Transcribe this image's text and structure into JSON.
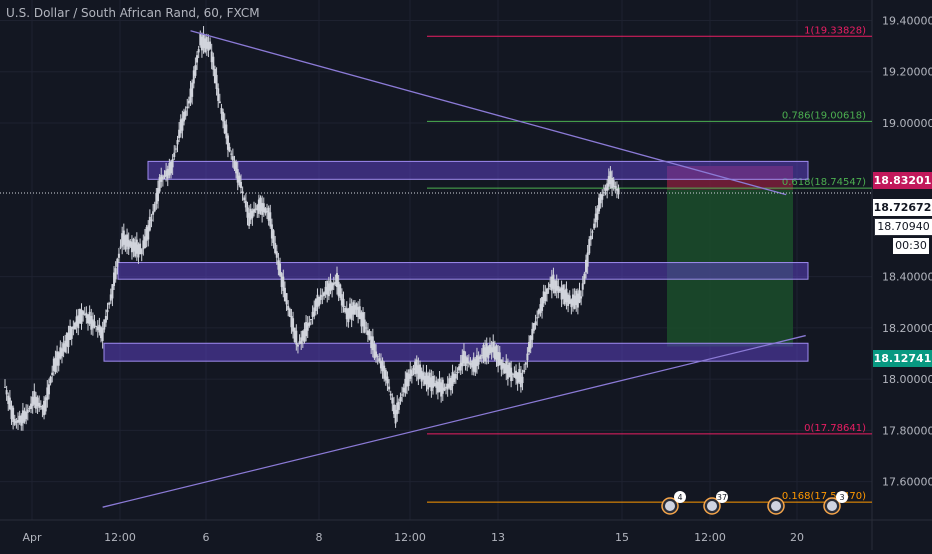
{
  "header": {
    "title": "U.S. Dollar / South African Rand, 60, FXCM"
  },
  "price_tags": {
    "upper": "18.83201",
    "last": "18.72672",
    "bid": "18.70940",
    "countdown": "00:30",
    "lower": "18.12741"
  },
  "colors": {
    "background": "#131722",
    "grid": "#1e2230",
    "candles": "#d1d4dc",
    "zone_fill": "#5b3fbf",
    "trendline": "#8b7ad6",
    "fib_red": "#e91e63",
    "fib_green": "#4caf50",
    "fib_orange": "#ff9800",
    "stop_zone": "#7b1f3a",
    "target_zone": "#1b4d2a"
  },
  "chart_data": {
    "type": "candlestick",
    "title": "U.S. Dollar / South African Rand, 60, FXCM",
    "ylim": [
      17.45,
      19.48
    ],
    "y_ticks": [
      {
        "value": 19.4,
        "label": "19.40000"
      },
      {
        "value": 19.2,
        "label": "19.20000"
      },
      {
        "value": 19.0,
        "label": "19.00000"
      },
      {
        "value": 18.4,
        "label": "18.40000"
      },
      {
        "value": 18.2,
        "label": "18.20000"
      },
      {
        "value": 18.0,
        "label": "18.00000"
      },
      {
        "value": 17.8,
        "label": "17.80000"
      },
      {
        "value": 17.6,
        "label": "17.60000"
      }
    ],
    "x_ticks": [
      "Apr",
      "12:00",
      "6",
      "8",
      "12:00",
      "13",
      "15",
      "12:00",
      "20"
    ],
    "price_series": [
      {
        "t": 0,
        "price": 17.97
      },
      {
        "t": 1,
        "price": 17.83
      },
      {
        "t": 2,
        "price": 17.85
      },
      {
        "t": 3,
        "price": 17.92
      },
      {
        "t": 4,
        "price": 17.88
      },
      {
        "t": 5,
        "price": 18.05
      },
      {
        "t": 6,
        "price": 18.12
      },
      {
        "t": 7,
        "price": 18.2
      },
      {
        "t": 8,
        "price": 18.26
      },
      {
        "t": 9,
        "price": 18.22
      },
      {
        "t": 10,
        "price": 18.18
      },
      {
        "t": 11,
        "price": 18.35
      },
      {
        "t": 12,
        "price": 18.55
      },
      {
        "t": 13,
        "price": 18.52
      },
      {
        "t": 14,
        "price": 18.5
      },
      {
        "t": 15,
        "price": 18.62
      },
      {
        "t": 16,
        "price": 18.78
      },
      {
        "t": 17,
        "price": 18.82
      },
      {
        "t": 18,
        "price": 18.98
      },
      {
        "t": 19,
        "price": 19.1
      },
      {
        "t": 20,
        "price": 19.32
      },
      {
        "t": 21,
        "price": 19.3
      },
      {
        "t": 22,
        "price": 19.08
      },
      {
        "t": 23,
        "price": 18.9
      },
      {
        "t": 24,
        "price": 18.78
      },
      {
        "t": 25,
        "price": 18.63
      },
      {
        "t": 26,
        "price": 18.68
      },
      {
        "t": 27,
        "price": 18.65
      },
      {
        "t": 28,
        "price": 18.45
      },
      {
        "t": 29,
        "price": 18.28
      },
      {
        "t": 30,
        "price": 18.13
      },
      {
        "t": 31,
        "price": 18.2
      },
      {
        "t": 32,
        "price": 18.3
      },
      {
        "t": 33,
        "price": 18.35
      },
      {
        "t": 34,
        "price": 18.38
      },
      {
        "t": 35,
        "price": 18.25
      },
      {
        "t": 36,
        "price": 18.28
      },
      {
        "t": 37,
        "price": 18.2
      },
      {
        "t": 38,
        "price": 18.1
      },
      {
        "t": 39,
        "price": 18.02
      },
      {
        "t": 40,
        "price": 17.86
      },
      {
        "t": 41,
        "price": 17.98
      },
      {
        "t": 42,
        "price": 18.05
      },
      {
        "t": 43,
        "price": 18.0
      },
      {
        "t": 44,
        "price": 17.98
      },
      {
        "t": 45,
        "price": 17.96
      },
      {
        "t": 46,
        "price": 18.0
      },
      {
        "t": 47,
        "price": 18.08
      },
      {
        "t": 48,
        "price": 18.05
      },
      {
        "t": 49,
        "price": 18.1
      },
      {
        "t": 50,
        "price": 18.12
      },
      {
        "t": 51,
        "price": 18.05
      },
      {
        "t": 52,
        "price": 18.02
      },
      {
        "t": 53,
        "price": 18.0
      },
      {
        "t": 54,
        "price": 18.18
      },
      {
        "t": 55,
        "price": 18.3
      },
      {
        "t": 56,
        "price": 18.38
      },
      {
        "t": 57,
        "price": 18.34
      },
      {
        "t": 58,
        "price": 18.3
      },
      {
        "t": 59,
        "price": 18.32
      },
      {
        "t": 60,
        "price": 18.55
      },
      {
        "t": 61,
        "price": 18.7
      },
      {
        "t": 62,
        "price": 18.78
      },
      {
        "t": 63,
        "price": 18.72
      }
    ],
    "zones": [
      {
        "top": 18.85,
        "bottom": 18.78
      },
      {
        "top": 18.455,
        "bottom": 18.39
      },
      {
        "top": 18.14,
        "bottom": 18.07
      }
    ],
    "fib_levels": [
      {
        "ratio": 1,
        "price": 19.33828,
        "label": "1(19.33828)",
        "color": "red"
      },
      {
        "ratio": 0.786,
        "price": 19.00618,
        "label": "0.786(19.00618)",
        "color": "green"
      },
      {
        "ratio": 0.618,
        "price": 18.74547,
        "label": "0.618(18.74547)",
        "color": "green"
      },
      {
        "ratio": 0,
        "price": 17.78641,
        "label": "0(17.78641)",
        "color": "red"
      },
      {
        "ratio": 0.168,
        "price": 17.52,
        "label": "0.168(17.52470)",
        "color": "orange"
      }
    ],
    "trendlines": [
      {
        "from": {
          "t": 19,
          "price": 19.36
        },
        "to": {
          "t": 80,
          "price": 18.72
        }
      },
      {
        "from": {
          "t": 10,
          "price": 17.5
        },
        "to": {
          "t": 82,
          "price": 18.17
        }
      }
    ],
    "position": {
      "entry": 18.74,
      "stop": 18.83201,
      "target": 18.12741
    },
    "events": [
      {
        "label": "4"
      },
      {
        "label": "37"
      },
      {
        "label": ""
      },
      {
        "label": "3"
      }
    ],
    "grid": true
  }
}
